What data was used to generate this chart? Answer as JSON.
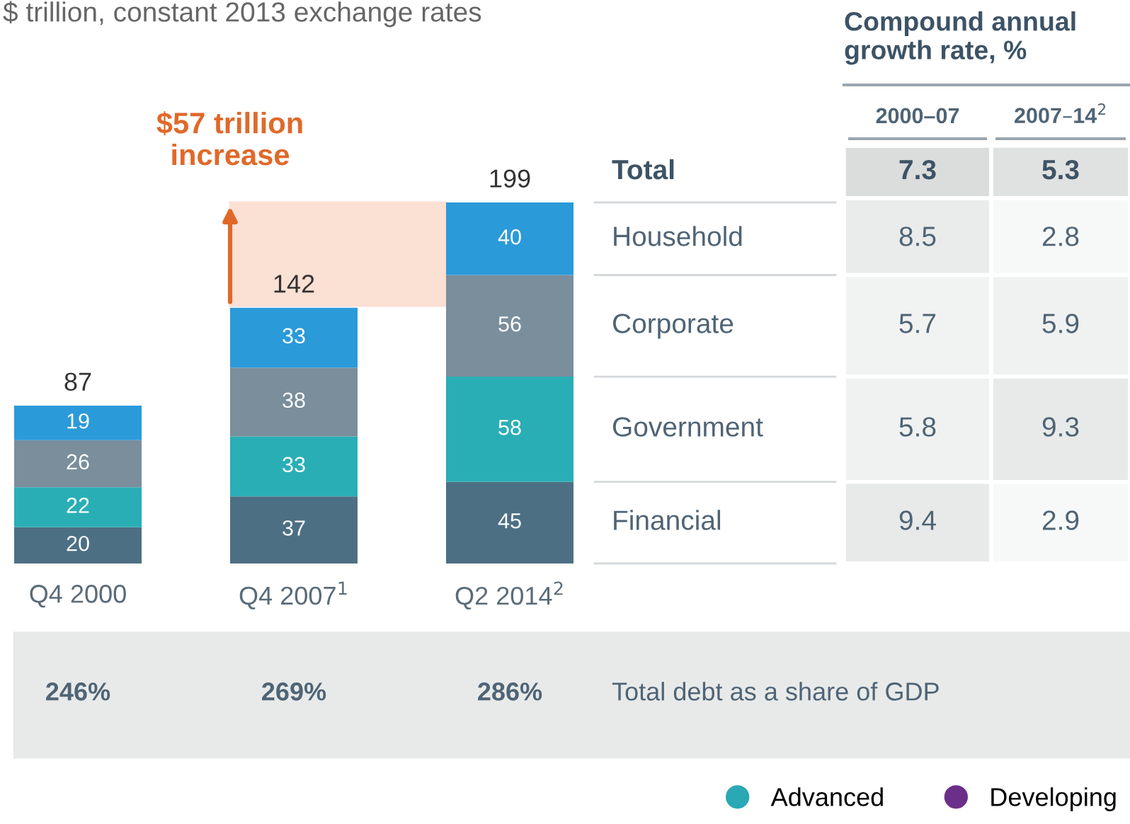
{
  "chart_data": [
    {
      "type": "bar",
      "subtitle": "$ trillion, constant 2013 exchange rates",
      "stacked": true,
      "data_labels": true,
      "tick_labels": "x",
      "categories": [
        "Q4 2000",
        "Q4 2007$^{1}$",
        "Q2 2014$^{2}$"
      ],
      "series": [
        {
          "color": "#4d6f84",
          "values": [
            20,
            37,
            45
          ]
        },
        {
          "color": "#2aaeb5",
          "values": [
            22,
            33,
            58
          ]
        },
        {
          "color": "#7a8e9c",
          "values": [
            26,
            38,
            56
          ]
        },
        {
          "color": "#2b9ad9",
          "values": [
            19,
            33,
            40
          ]
        }
      ],
      "totals": [
        "87",
        "142",
        "199"
      ],
      "bands": [
        {
          "axis": "y",
          "from": 142,
          "to": 199,
          "color": "#fbe0d4"
        }
      ],
      "annotations": [
        {
          "text": "$57 trillion\nincrease",
          "x": "Q4 2007$^{1}$",
          "y": 199
        },
        "246%",
        "269%",
        "286%",
        "Total debt as a share of GDP"
      ]
    },
    {
      "type": "heatmap",
      "title": "Compound annual\ngrowth rate, %",
      "categories": [
        "2000–07",
        "2007–14$^{2}$"
      ],
      "y_categories": [
        "Total",
        "Household",
        "Corporate",
        "Government",
        "Financial"
      ],
      "cells": [
        [
          7.3,
          5.3
        ],
        [
          8.5,
          2.8
        ],
        [
          5.7,
          5.9
        ],
        [
          5.8,
          9.3
        ],
        [
          9.4,
          2.9
        ]
      ],
      "cell_labels": [
        [
          "7.3",
          "5.3"
        ],
        [
          "8.5",
          "2.8"
        ],
        [
          "5.7",
          "5.9"
        ],
        [
          "5.8",
          "9.3"
        ],
        [
          "9.4",
          "2.9"
        ]
      ]
    },
    {
      "type": "other",
      "legend": "bottom right",
      "series": [
        {
          "name": "Advanced",
          "color": "#2aa8b5"
        },
        {
          "name": "Developing",
          "color": "#6b2f8a"
        }
      ]
    }
  ]
}
